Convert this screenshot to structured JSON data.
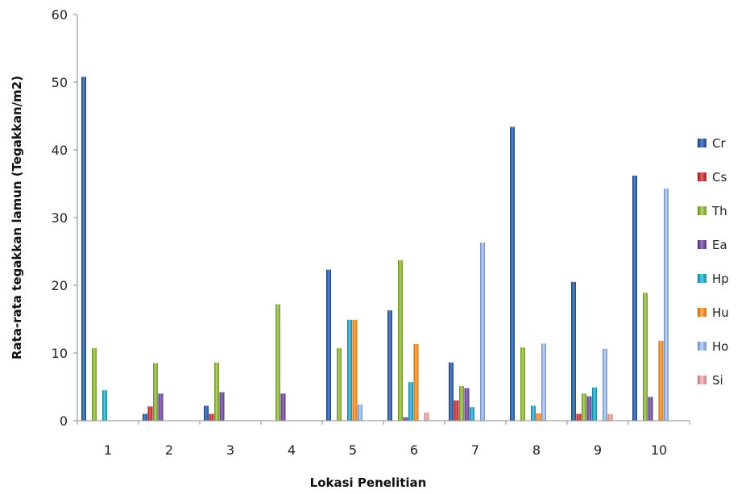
{
  "chart_data": {
    "type": "bar",
    "title": "",
    "xlabel": "Lokasi Penelitian",
    "ylabel": "Rata-rata tegakkan lamun (Tegakkan/m2)",
    "ylim": [
      0,
      60
    ],
    "yticks": [
      0,
      10,
      20,
      30,
      40,
      50,
      60
    ],
    "grid": false,
    "legend_position": "right",
    "categories": [
      "1",
      "2",
      "3",
      "4",
      "5",
      "6",
      "7",
      "8",
      "9",
      "10"
    ],
    "series": [
      {
        "name": "Cr",
        "color": "#2E5A9C",
        "values": [
          50.8,
          1.0,
          2.2,
          0,
          22.3,
          16.3,
          8.6,
          43.4,
          20.5,
          36.2
        ]
      },
      {
        "name": "Cs",
        "color": "#B83232",
        "values": [
          0,
          2.1,
          1.0,
          0,
          0,
          0,
          3.0,
          0,
          1.0,
          0
        ]
      },
      {
        "name": "Th",
        "color": "#86A83C",
        "values": [
          10.7,
          8.5,
          8.6,
          17.2,
          10.7,
          23.7,
          5.1,
          10.8,
          4.0,
          18.9
        ]
      },
      {
        "name": "Ea",
        "color": "#6A4B93",
        "values": [
          0,
          4.0,
          4.2,
          4.0,
          0,
          0.5,
          4.8,
          0,
          3.6,
          3.5
        ]
      },
      {
        "name": "Hp",
        "color": "#2B9CB8",
        "values": [
          4.5,
          0,
          0,
          0,
          14.9,
          5.7,
          2.0,
          2.2,
          4.9,
          0
        ]
      },
      {
        "name": "Hu",
        "color": "#E58325",
        "values": [
          0,
          0,
          0,
          0,
          14.9,
          11.3,
          0,
          1.1,
          0,
          11.8
        ]
      },
      {
        "name": "Ho",
        "color": "#8EA9D6",
        "values": [
          0,
          0,
          0,
          0,
          2.4,
          0,
          26.3,
          11.4,
          10.6,
          34.3
        ]
      },
      {
        "name": "Si",
        "color": "#D99594",
        "values": [
          0,
          0,
          0,
          0,
          0,
          1.2,
          0,
          0,
          1.0,
          0
        ]
      }
    ]
  }
}
